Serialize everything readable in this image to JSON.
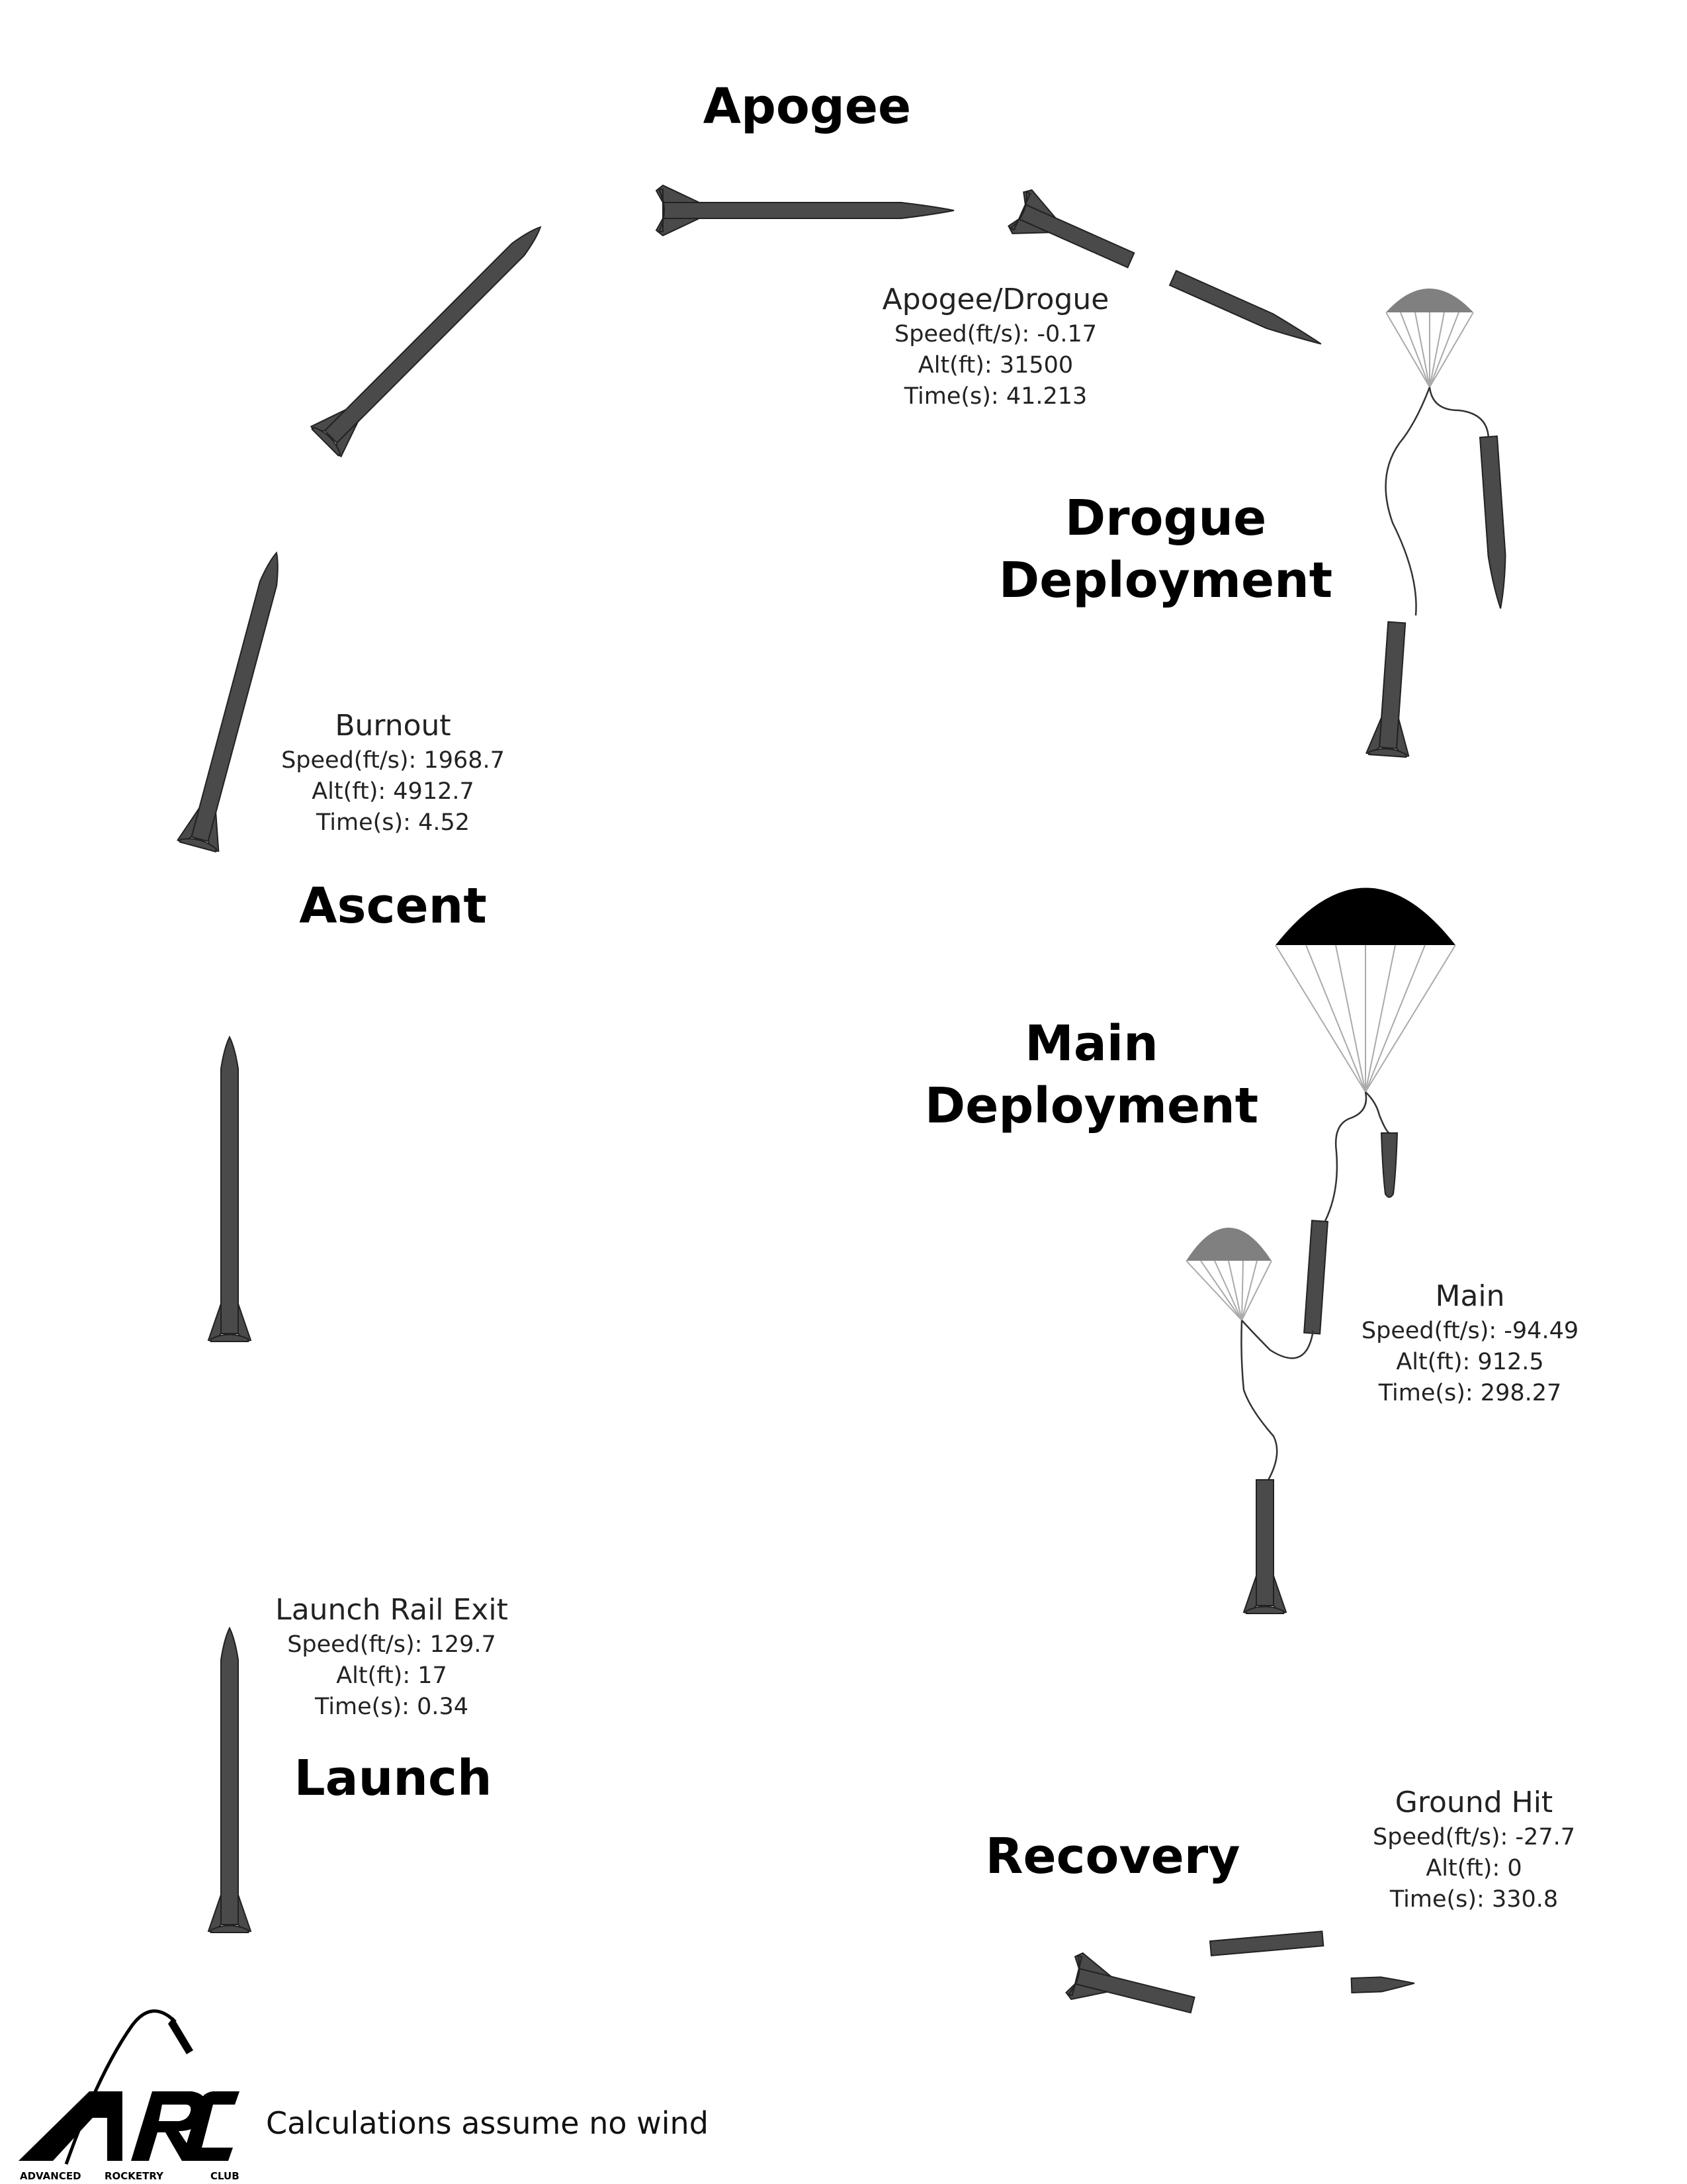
{
  "phases": {
    "apogee": "Apogee",
    "drogue_deployment": [
      "Drogue",
      "Deployment"
    ],
    "ascent": "Ascent",
    "main_deployment": [
      "Main",
      "Deployment"
    ],
    "launch": "Launch",
    "recovery": "Recovery"
  },
  "events": {
    "apogee_drogue": {
      "title": "Apogee/Drogue",
      "speed": "Speed(ft/s): -0.17",
      "alt": "Alt(ft): 31500",
      "time": "Time(s): 41.213"
    },
    "burnout": {
      "title": "Burnout",
      "speed": "Speed(ft/s): 1968.7",
      "alt": "Alt(ft): 4912.7",
      "time": "Time(s): 4.52"
    },
    "main": {
      "title": "Main",
      "speed": "Speed(ft/s): -94.49",
      "alt": "Alt(ft): 912.5",
      "time": "Time(s): 298.27"
    },
    "launch_rail_exit": {
      "title": "Launch Rail Exit",
      "speed": "Speed(ft/s): 129.7",
      "alt": "Alt(ft): 17",
      "time": "Time(s): 0.34"
    },
    "ground_hit": {
      "title": "Ground Hit",
      "speed": "Speed(ft/s): -27.7",
      "alt": "Alt(ft): 0",
      "time": "Time(s): 330.8"
    }
  },
  "footnote": "Calculations assume no wind",
  "logo": {
    "letters": "ARC",
    "tagline": [
      "ADVANCED",
      "ROCKETRY",
      "CLUB"
    ]
  },
  "colors": {
    "rocket": "#4a4a4a",
    "main_chute": "#000000",
    "drogue_chute": "#808080",
    "shroud": "#aaaaaa"
  },
  "icons": [
    "rocket-icon",
    "parachute-icon",
    "arc-logo-icon"
  ]
}
